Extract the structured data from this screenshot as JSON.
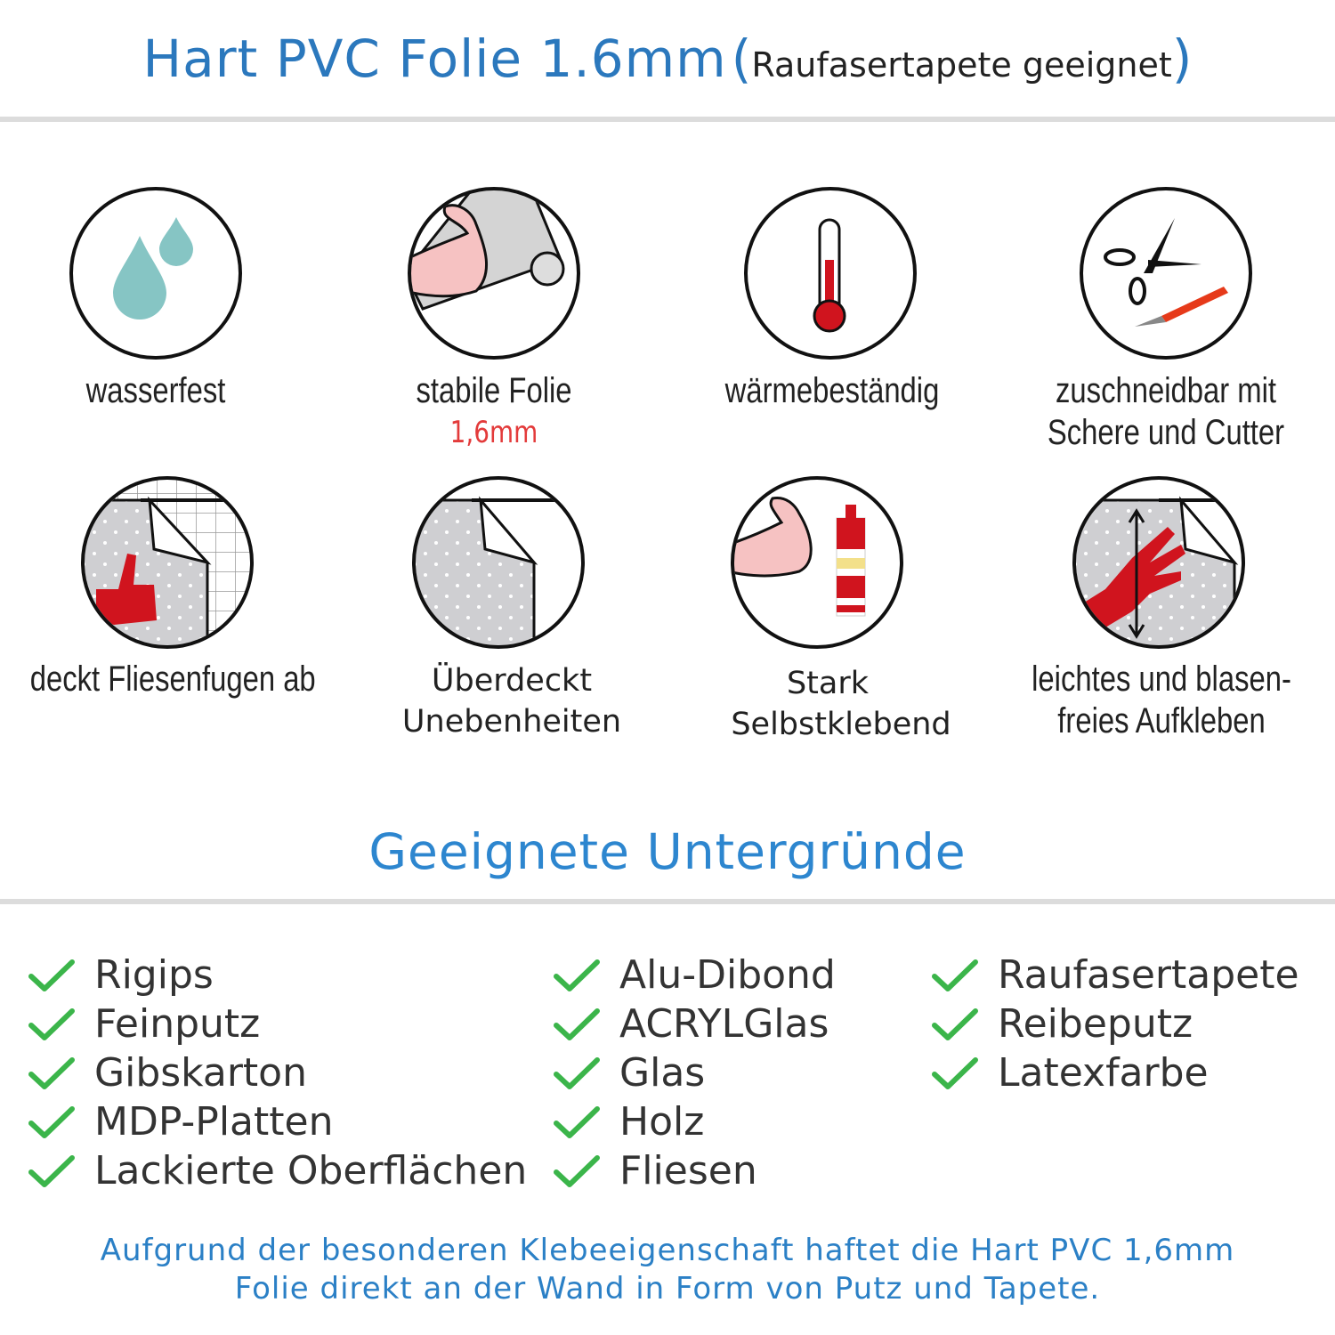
{
  "header": {
    "title": "Hart PVC Folie 1.6mm",
    "subtitle": "Raufasertapete geeignet",
    "open_paren": "(",
    "close_paren": ")"
  },
  "features": [
    {
      "icon": "water-drops-icon",
      "lines": [
        "wasserfest"
      ]
    },
    {
      "icon": "strong-film-icon",
      "lines": [
        "stabile Folie"
      ],
      "highlight": "1,6mm"
    },
    {
      "icon": "thermometer-icon",
      "lines": [
        "wärmebeständig"
      ]
    },
    {
      "icon": "scissors-cutter-icon",
      "lines": [
        "zuschneidbar mit",
        "Schere und Cutter"
      ]
    },
    {
      "icon": "tile-cover-icon",
      "lines": [
        "deckt Fliesenfugen ab"
      ]
    },
    {
      "icon": "uneven-cover-icon",
      "lines": [
        "Überdeckt",
        "Unebenheiten"
      ]
    },
    {
      "icon": "strong-adhesive-icon",
      "lines": [
        "Stark",
        "Selbstklebend"
      ]
    },
    {
      "icon": "hand-apply-icon",
      "lines": [
        "leichtes und blasen-",
        "freies Aufkleben"
      ]
    }
  ],
  "surfaces": {
    "title": "Geeignete Untergründe",
    "columns": [
      [
        "Rigips",
        "Feinputz",
        "Gibskarton",
        "MDP-Platten",
        "Lackierte Oberflächen"
      ],
      [
        "Alu-Dibond",
        "ACRYLGlas",
        "Glas",
        "Holz",
        "Fliesen"
      ],
      [
        "Raufasertapete",
        "Reibeputz",
        "Latexfarbe"
      ]
    ]
  },
  "footer": {
    "lines": [
      "Aufgrund der besonderen Klebeeigenschaft haftet die Hart PVC 1,6mm",
      "Folie direkt an der Wand in Form von Putz und Tapete."
    ]
  },
  "colors": {
    "title_blue": "#2b78bd",
    "check_green": "#3bb54a",
    "accent_red": "#d0141e",
    "drop_teal": "#86c5c4"
  }
}
